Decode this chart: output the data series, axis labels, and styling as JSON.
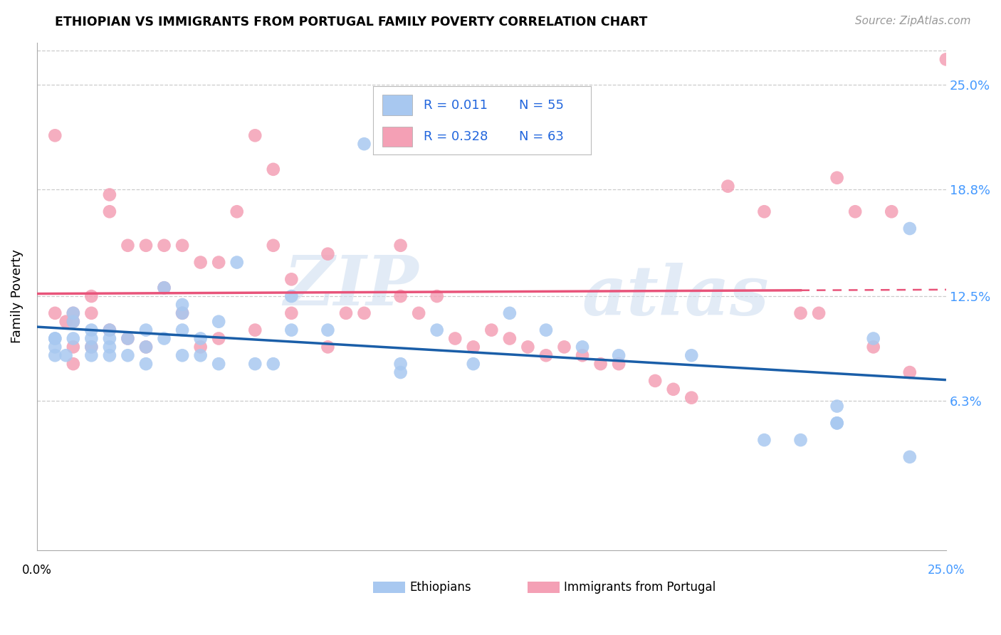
{
  "title": "ETHIOPIAN VS IMMIGRANTS FROM PORTUGAL FAMILY POVERTY CORRELATION CHART",
  "source": "Source: ZipAtlas.com",
  "ylabel": "Family Poverty",
  "ytick_labels": [
    "25.0%",
    "18.8%",
    "12.5%",
    "6.3%"
  ],
  "ytick_values": [
    0.25,
    0.188,
    0.125,
    0.063
  ],
  "xlim": [
    0.0,
    0.25
  ],
  "ylim": [
    -0.025,
    0.275
  ],
  "legend_blue_R": "R = 0.011",
  "legend_blue_N": "N = 55",
  "legend_pink_R": "R = 0.328",
  "legend_pink_N": "N = 63",
  "legend_label_blue": "Ethiopians",
  "legend_label_pink": "Immigrants from Portugal",
  "blue_color": "#A8C8F0",
  "pink_color": "#F4A0B5",
  "blue_line_color": "#1A5EA8",
  "pink_line_color": "#E8547A",
  "watermark_zip": "ZIP",
  "watermark_atlas": "atlas",
  "grid_color": "#CCCCCC",
  "background_color": "#FFFFFF",
  "blue_scatter_x": [
    0.005,
    0.005,
    0.005,
    0.005,
    0.008,
    0.01,
    0.01,
    0.01,
    0.015,
    0.015,
    0.015,
    0.015,
    0.02,
    0.02,
    0.02,
    0.02,
    0.025,
    0.025,
    0.03,
    0.03,
    0.03,
    0.035,
    0.035,
    0.04,
    0.04,
    0.04,
    0.04,
    0.045,
    0.045,
    0.05,
    0.05,
    0.055,
    0.06,
    0.065,
    0.07,
    0.07,
    0.08,
    0.09,
    0.1,
    0.1,
    0.11,
    0.12,
    0.13,
    0.14,
    0.15,
    0.16,
    0.18,
    0.2,
    0.21,
    0.22,
    0.22,
    0.22,
    0.23,
    0.24,
    0.24
  ],
  "blue_scatter_y": [
    0.1,
    0.1,
    0.095,
    0.09,
    0.09,
    0.115,
    0.11,
    0.1,
    0.105,
    0.1,
    0.095,
    0.09,
    0.105,
    0.1,
    0.095,
    0.09,
    0.1,
    0.09,
    0.105,
    0.095,
    0.085,
    0.13,
    0.1,
    0.12,
    0.115,
    0.105,
    0.09,
    0.1,
    0.09,
    0.11,
    0.085,
    0.145,
    0.085,
    0.085,
    0.125,
    0.105,
    0.105,
    0.215,
    0.085,
    0.08,
    0.105,
    0.085,
    0.115,
    0.105,
    0.095,
    0.09,
    0.09,
    0.04,
    0.04,
    0.06,
    0.05,
    0.05,
    0.1,
    0.165,
    0.03
  ],
  "pink_scatter_x": [
    0.005,
    0.005,
    0.008,
    0.01,
    0.01,
    0.01,
    0.01,
    0.015,
    0.015,
    0.015,
    0.02,
    0.02,
    0.02,
    0.025,
    0.025,
    0.03,
    0.03,
    0.035,
    0.035,
    0.04,
    0.04,
    0.045,
    0.045,
    0.05,
    0.05,
    0.055,
    0.06,
    0.06,
    0.065,
    0.065,
    0.07,
    0.07,
    0.08,
    0.08,
    0.085,
    0.09,
    0.1,
    0.1,
    0.105,
    0.11,
    0.115,
    0.12,
    0.125,
    0.13,
    0.135,
    0.14,
    0.145,
    0.15,
    0.155,
    0.16,
    0.17,
    0.175,
    0.18,
    0.19,
    0.2,
    0.21,
    0.215,
    0.22,
    0.225,
    0.23,
    0.235,
    0.24,
    0.25
  ],
  "pink_scatter_y": [
    0.22,
    0.115,
    0.11,
    0.115,
    0.11,
    0.095,
    0.085,
    0.125,
    0.115,
    0.095,
    0.185,
    0.175,
    0.105,
    0.155,
    0.1,
    0.155,
    0.095,
    0.155,
    0.13,
    0.155,
    0.115,
    0.145,
    0.095,
    0.145,
    0.1,
    0.175,
    0.22,
    0.105,
    0.2,
    0.155,
    0.135,
    0.115,
    0.15,
    0.095,
    0.115,
    0.115,
    0.155,
    0.125,
    0.115,
    0.125,
    0.1,
    0.095,
    0.105,
    0.1,
    0.095,
    0.09,
    0.095,
    0.09,
    0.085,
    0.085,
    0.075,
    0.07,
    0.065,
    0.19,
    0.175,
    0.115,
    0.115,
    0.195,
    0.175,
    0.095,
    0.175,
    0.08,
    0.265
  ]
}
